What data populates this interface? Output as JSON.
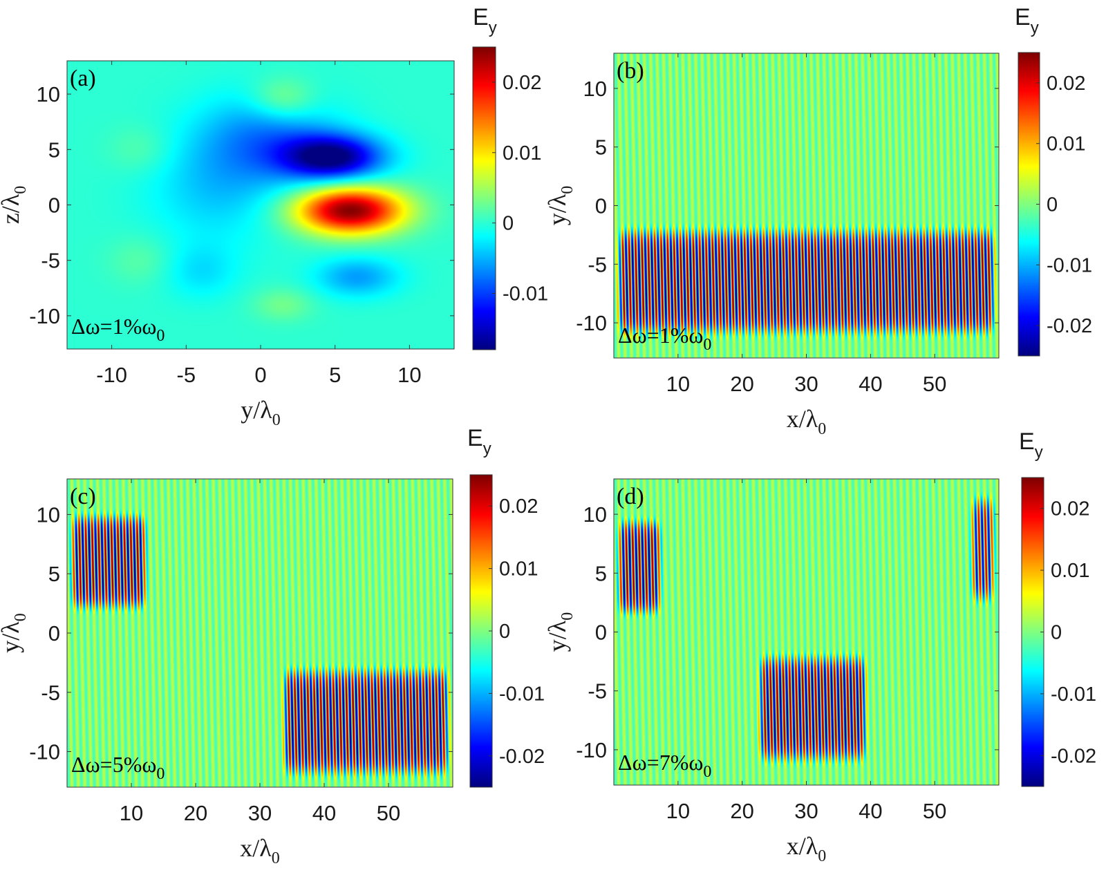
{
  "colormap": "jet",
  "chart_data": [
    {
      "type": "heatmap",
      "panel_label": "(a)",
      "xlabel": "y/λ",
      "xlabel_sub": "0",
      "ylabel": "z/λ",
      "ylabel_sub": "0",
      "xlim": [
        -13,
        13
      ],
      "ylim": [
        -13,
        13
      ],
      "xticks": [
        -10,
        -5,
        0,
        5,
        10
      ],
      "yticks": [
        10,
        5,
        0,
        -5,
        -10
      ],
      "annotation": "Δω=1%ω",
      "annotation_sub": "0",
      "colorbar_title": "E",
      "colorbar_title_sub": "y",
      "clim": [
        -0.018,
        0.025
      ],
      "colorbar_ticks": [
        0.02,
        0.01,
        0,
        -0.01
      ],
      "field": {
        "kind": "lobes",
        "lobes": [
          {
            "x": 6.0,
            "y": -0.5,
            "sx": 3.6,
            "sy": 2.1,
            "amp": 0.025
          },
          {
            "x": 4.8,
            "y": 4.3,
            "sx": 3.3,
            "sy": 2.0,
            "amp": -0.018
          },
          {
            "x": 0.5,
            "y": 6.0,
            "sx": 4.5,
            "sy": 4.0,
            "amp": -0.007
          },
          {
            "x": -3.0,
            "y": 1.5,
            "sx": 4.5,
            "sy": 5.0,
            "amp": -0.004
          },
          {
            "x": 1.5,
            "y": 9.5,
            "sx": 2.2,
            "sy": 2.0,
            "amp": 0.005
          },
          {
            "x": 6.5,
            "y": -6.5,
            "sx": 2.8,
            "sy": 1.8,
            "amp": -0.006
          },
          {
            "x": -8.0,
            "y": 5.0,
            "sx": 2.2,
            "sy": 2.2,
            "amp": 0.002
          },
          {
            "x": -8.0,
            "y": -5.0,
            "sx": 2.2,
            "sy": 2.2,
            "amp": 0.002
          },
          {
            "x": 1.5,
            "y": -9.0,
            "sx": 2.0,
            "sy": 1.5,
            "amp": 0.003
          },
          {
            "x": -4.0,
            "y": -6.0,
            "sx": 2.5,
            "sy": 2.5,
            "amp": -0.003
          }
        ]
      }
    },
    {
      "type": "heatmap",
      "panel_label": "(b)",
      "xlabel": "x/λ",
      "xlabel_sub": "0",
      "ylabel": "y/λ",
      "ylabel_sub": "0",
      "xlim": [
        0,
        60
      ],
      "ylim": [
        -13,
        13
      ],
      "xticks": [
        10,
        20,
        30,
        40,
        50
      ],
      "yticks": [
        10,
        5,
        0,
        -5,
        -10
      ],
      "annotation": "Δω=1%ω",
      "annotation_sub": "0",
      "colorbar_title": "E",
      "colorbar_title_sub": "y",
      "clim": [
        -0.025,
        0.025
      ],
      "colorbar_ticks": [
        0.02,
        0.01,
        0,
        -0.01,
        -0.02
      ],
      "field": {
        "kind": "fringes",
        "wavelength": 1.0,
        "background": 0.003,
        "packets": [
          {
            "x0": 0,
            "x1": 60,
            "y_center": -6.5,
            "y_halfwidth": 4.5,
            "amp": 0.025
          }
        ]
      }
    },
    {
      "type": "heatmap",
      "panel_label": "(c)",
      "xlabel": "x/λ",
      "xlabel_sub": "0",
      "ylabel": "y/λ",
      "ylabel_sub": "0",
      "xlim": [
        0,
        60
      ],
      "ylim": [
        -13,
        13
      ],
      "xticks": [
        10,
        20,
        30,
        40,
        50
      ],
      "yticks": [
        10,
        5,
        0,
        -5,
        -10
      ],
      "annotation": "Δω=5%ω",
      "annotation_sub": "0",
      "colorbar_title": "E",
      "colorbar_title_sub": "y",
      "clim": [
        -0.025,
        0.025
      ],
      "colorbar_ticks": [
        0.02,
        0.01,
        0,
        -0.01,
        -0.02
      ],
      "field": {
        "kind": "fringes",
        "wavelength": 1.0,
        "background": 0.003,
        "packets": [
          {
            "x0": 0,
            "x1": 13,
            "y_center": 6.0,
            "y_halfwidth": 4.0,
            "amp": 0.025
          },
          {
            "x0": 33,
            "x1": 60,
            "y_center": -7.5,
            "y_halfwidth": 4.5,
            "amp": 0.025
          }
        ]
      }
    },
    {
      "type": "heatmap",
      "panel_label": "(d)",
      "xlabel": "x/λ",
      "xlabel_sub": "0",
      "ylabel": "y/λ",
      "ylabel_sub": "0",
      "xlim": [
        0,
        60
      ],
      "ylim": [
        -13,
        13
      ],
      "xticks": [
        10,
        20,
        30,
        40,
        50
      ],
      "yticks": [
        10,
        5,
        0,
        -5,
        -10
      ],
      "annotation": "Δω=7%ω",
      "annotation_sub": "0",
      "colorbar_title": "E",
      "colorbar_title_sub": "y",
      "clim": [
        -0.025,
        0.025
      ],
      "colorbar_ticks": [
        0.02,
        0.01,
        0,
        -0.01,
        -0.02
      ],
      "field": {
        "kind": "fringes",
        "wavelength": 1.0,
        "background": 0.003,
        "packets": [
          {
            "x0": 0,
            "x1": 8,
            "y_center": 5.5,
            "y_halfwidth": 4.0,
            "amp": 0.025
          },
          {
            "x0": 22,
            "x1": 40,
            "y_center": -6.5,
            "y_halfwidth": 4.5,
            "amp": 0.025
          },
          {
            "x0": 55,
            "x1": 60,
            "y_center": 7.0,
            "y_halfwidth": 4.5,
            "amp": 0.022
          }
        ]
      }
    }
  ]
}
